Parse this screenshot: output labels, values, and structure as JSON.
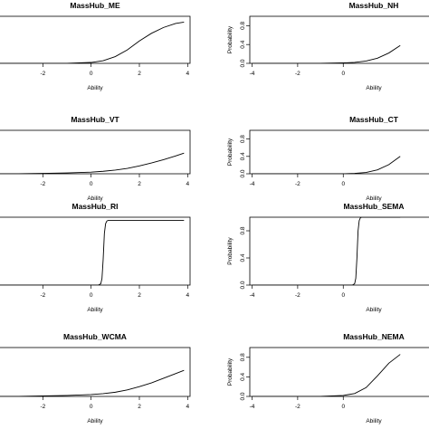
{
  "chart_data": [
    {
      "type": "line",
      "title": "MassHub_ME",
      "xlabel": "Ability",
      "ylabel": "",
      "xticks": [
        "-2",
        "0",
        "2",
        "4"
      ],
      "yticks": [],
      "xlim": [
        -4,
        4.1
      ],
      "ylim": [
        0,
        1.05
      ],
      "x": [
        -4,
        -3.5,
        -3,
        -2.5,
        -2,
        -1.5,
        -1,
        -0.5,
        0,
        0.5,
        1,
        1.5,
        2,
        2.5,
        3,
        3.5,
        3.85
      ],
      "y": [
        0.0,
        0.0,
        0.0,
        0.0,
        0.0,
        0.0,
        0.0,
        0.01,
        0.02,
        0.06,
        0.15,
        0.3,
        0.5,
        0.67,
        0.8,
        0.89,
        0.92
      ]
    },
    {
      "type": "line",
      "title": "MassHub_NH",
      "xlabel": "Ability",
      "ylabel": "Probability",
      "xticks": [
        "-4",
        "-2",
        "0"
      ],
      "yticks": [
        "0.0",
        "0.4",
        "0.8"
      ],
      "xlim": [
        -4.1,
        4
      ],
      "ylim": [
        0,
        1.0
      ],
      "x": [
        -4,
        -3,
        -2,
        -1,
        0,
        0.5,
        1,
        1.5,
        2,
        2.5
      ],
      "y": [
        0.0,
        0.0,
        0.0,
        0.0,
        0.01,
        0.02,
        0.05,
        0.11,
        0.22,
        0.38
      ]
    },
    {
      "type": "line",
      "title": "MassHub_VT",
      "xlabel": "Ability",
      "ylabel": "",
      "xticks": [
        "-2",
        "0",
        "2",
        "4"
      ],
      "yticks": [],
      "xlim": [
        -4,
        4.1
      ],
      "ylim": [
        0,
        1.05
      ],
      "x": [
        -4,
        -3,
        -2,
        -1,
        0,
        0.5,
        1,
        1.5,
        2,
        2.5,
        3,
        3.5,
        3.85
      ],
      "y": [
        0.0,
        0.0,
        0.01,
        0.02,
        0.04,
        0.06,
        0.09,
        0.13,
        0.19,
        0.26,
        0.34,
        0.43,
        0.5
      ]
    },
    {
      "type": "line",
      "title": "MassHub_CT",
      "xlabel": "Ability",
      "ylabel": "Probability",
      "xticks": [
        "-4",
        "-2",
        "0"
      ],
      "yticks": [
        "0.0",
        "0.4",
        "0.8"
      ],
      "xlim": [
        -4.1,
        4
      ],
      "ylim": [
        0,
        1.0
      ],
      "x": [
        -4,
        -3,
        -2,
        -1,
        0,
        0.5,
        1,
        1.5,
        2,
        2.5
      ],
      "y": [
        0.0,
        0.0,
        0.0,
        0.0,
        0.0,
        0.01,
        0.03,
        0.09,
        0.21,
        0.4
      ]
    },
    {
      "type": "line",
      "title": "MassHub_RI",
      "xlabel": "Ability",
      "ylabel": "",
      "xticks": [
        "-2",
        "0",
        "2",
        "4"
      ],
      "yticks": [],
      "xlim": [
        -4,
        4.1
      ],
      "ylim": [
        0,
        1.05
      ],
      "x": [
        -4,
        0.3,
        0.4,
        0.45,
        0.5,
        0.55,
        0.6,
        0.65,
        0.7,
        0.8,
        3.85
      ],
      "y": [
        0.0,
        0.0,
        0.02,
        0.1,
        0.4,
        0.8,
        0.95,
        0.99,
        1.0,
        1.0,
        1.0
      ]
    },
    {
      "type": "line",
      "title": "MassHub_SEMA",
      "xlabel": "Ability",
      "ylabel": "Probability",
      "xticks": [
        "-4",
        "-2",
        "0"
      ],
      "yticks": [
        "0.0",
        "0.4",
        "0.8"
      ],
      "xlim": [
        -4.1,
        4
      ],
      "ylim": [
        0,
        1.0
      ],
      "x": [
        -4,
        0.4,
        0.5,
        0.55,
        0.6,
        0.65,
        0.7,
        0.75,
        0.8,
        0.9,
        2.5
      ],
      "y": [
        0.0,
        0.0,
        0.02,
        0.1,
        0.4,
        0.8,
        0.95,
        0.99,
        1.0,
        1.0,
        1.0
      ]
    },
    {
      "type": "line",
      "title": "MassHub_WCMA",
      "xlabel": "Ability",
      "ylabel": "",
      "xticks": [
        "-2",
        "0",
        "2",
        "4"
      ],
      "yticks": [],
      "xlim": [
        -4,
        4.1
      ],
      "ylim": [
        0,
        1.05
      ],
      "x": [
        -4,
        -3,
        -2,
        -1,
        0,
        0.5,
        1,
        1.5,
        2,
        2.5,
        3,
        3.5,
        3.85
      ],
      "y": [
        0.0,
        0.0,
        0.01,
        0.02,
        0.04,
        0.06,
        0.09,
        0.14,
        0.21,
        0.29,
        0.39,
        0.49,
        0.56
      ]
    },
    {
      "type": "line",
      "title": "MassHub_NEMA",
      "xlabel": "Ability",
      "ylabel": "Probability",
      "xticks": [
        "-4",
        "-2",
        "0"
      ],
      "yticks": [
        "0.0",
        "0.4",
        "0.8"
      ],
      "xlim": [
        -4.1,
        4
      ],
      "ylim": [
        0,
        1.0
      ],
      "x": [
        -4,
        -3,
        -2,
        -1,
        0,
        0.5,
        1,
        1.5,
        2,
        2.5
      ],
      "y": [
        0.0,
        0.0,
        0.0,
        0.0,
        0.02,
        0.06,
        0.18,
        0.42,
        0.68,
        0.86
      ]
    }
  ]
}
